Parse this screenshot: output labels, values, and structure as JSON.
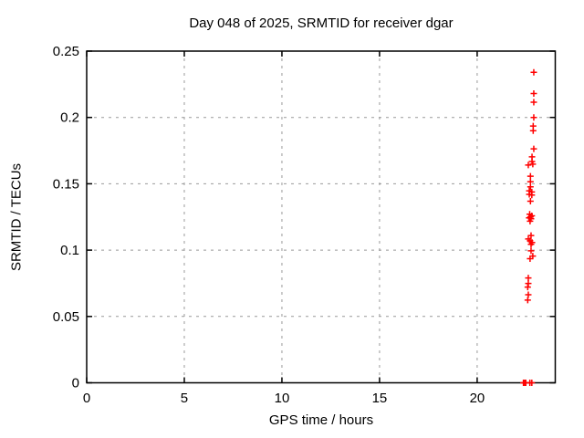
{
  "chart_data": {
    "type": "scatter",
    "title": "Day 048 of 2025, SRMTID for receiver dgar",
    "xlabel": "GPS time / hours",
    "ylabel": "SRMTID / TECUs",
    "xlim": [
      0,
      24
    ],
    "ylim": [
      0,
      0.25
    ],
    "xticks": [
      0,
      5,
      10,
      15,
      20
    ],
    "yticks": [
      0,
      0.05,
      0.1,
      0.15,
      0.2,
      0.25
    ],
    "xtick_labels": [
      "0",
      "5",
      "10",
      "15",
      "20"
    ],
    "ytick_labels": [
      "0",
      "0.05",
      "0.1",
      "0.15",
      "0.2",
      "0.25"
    ],
    "grid": true,
    "legend_position": "none",
    "marker": "plus",
    "series": [
      {
        "name": "SRMTID",
        "color": "#ff0000",
        "points": [
          [
            22.9,
            0.234
          ],
          [
            22.9,
            0.218
          ],
          [
            22.9,
            0.2115
          ],
          [
            22.9,
            0.2
          ],
          [
            22.87,
            0.1935
          ],
          [
            22.87,
            0.19
          ],
          [
            22.9,
            0.1763
          ],
          [
            22.81,
            0.1703
          ],
          [
            22.81,
            0.1668
          ],
          [
            22.85,
            0.1648
          ],
          [
            22.62,
            0.1641
          ],
          [
            22.73,
            0.1557
          ],
          [
            22.73,
            0.1516
          ],
          [
            22.73,
            0.1477
          ],
          [
            22.67,
            0.1447
          ],
          [
            22.8,
            0.1438
          ],
          [
            22.67,
            0.142
          ],
          [
            22.8,
            0.1415
          ],
          [
            22.73,
            0.1369
          ],
          [
            22.69,
            0.1271
          ],
          [
            22.8,
            0.1259
          ],
          [
            22.66,
            0.1243
          ],
          [
            22.76,
            0.1236
          ],
          [
            22.73,
            0.125
          ],
          [
            22.71,
            0.1218
          ],
          [
            22.76,
            0.111
          ],
          [
            22.62,
            0.1084
          ],
          [
            22.71,
            0.107
          ],
          [
            22.81,
            0.1057
          ],
          [
            22.76,
            0.1044
          ],
          [
            22.76,
            0.0995
          ],
          [
            22.85,
            0.0955
          ],
          [
            22.71,
            0.0935
          ],
          [
            22.62,
            0.079
          ],
          [
            22.62,
            0.0749
          ],
          [
            22.59,
            0.0721
          ],
          [
            22.62,
            0.0664
          ],
          [
            22.59,
            0.0623
          ],
          [
            22.37,
            0.0
          ],
          [
            22.43,
            0.0
          ],
          [
            22.49,
            0.0
          ],
          [
            22.7,
            0.0
          ],
          [
            22.8,
            0.0
          ]
        ]
      }
    ]
  },
  "style": {
    "background": "#ffffff",
    "axis_color": "#000000",
    "grid_color": "#999999",
    "text_color": "#000000",
    "marker_color": "#ff0000"
  }
}
